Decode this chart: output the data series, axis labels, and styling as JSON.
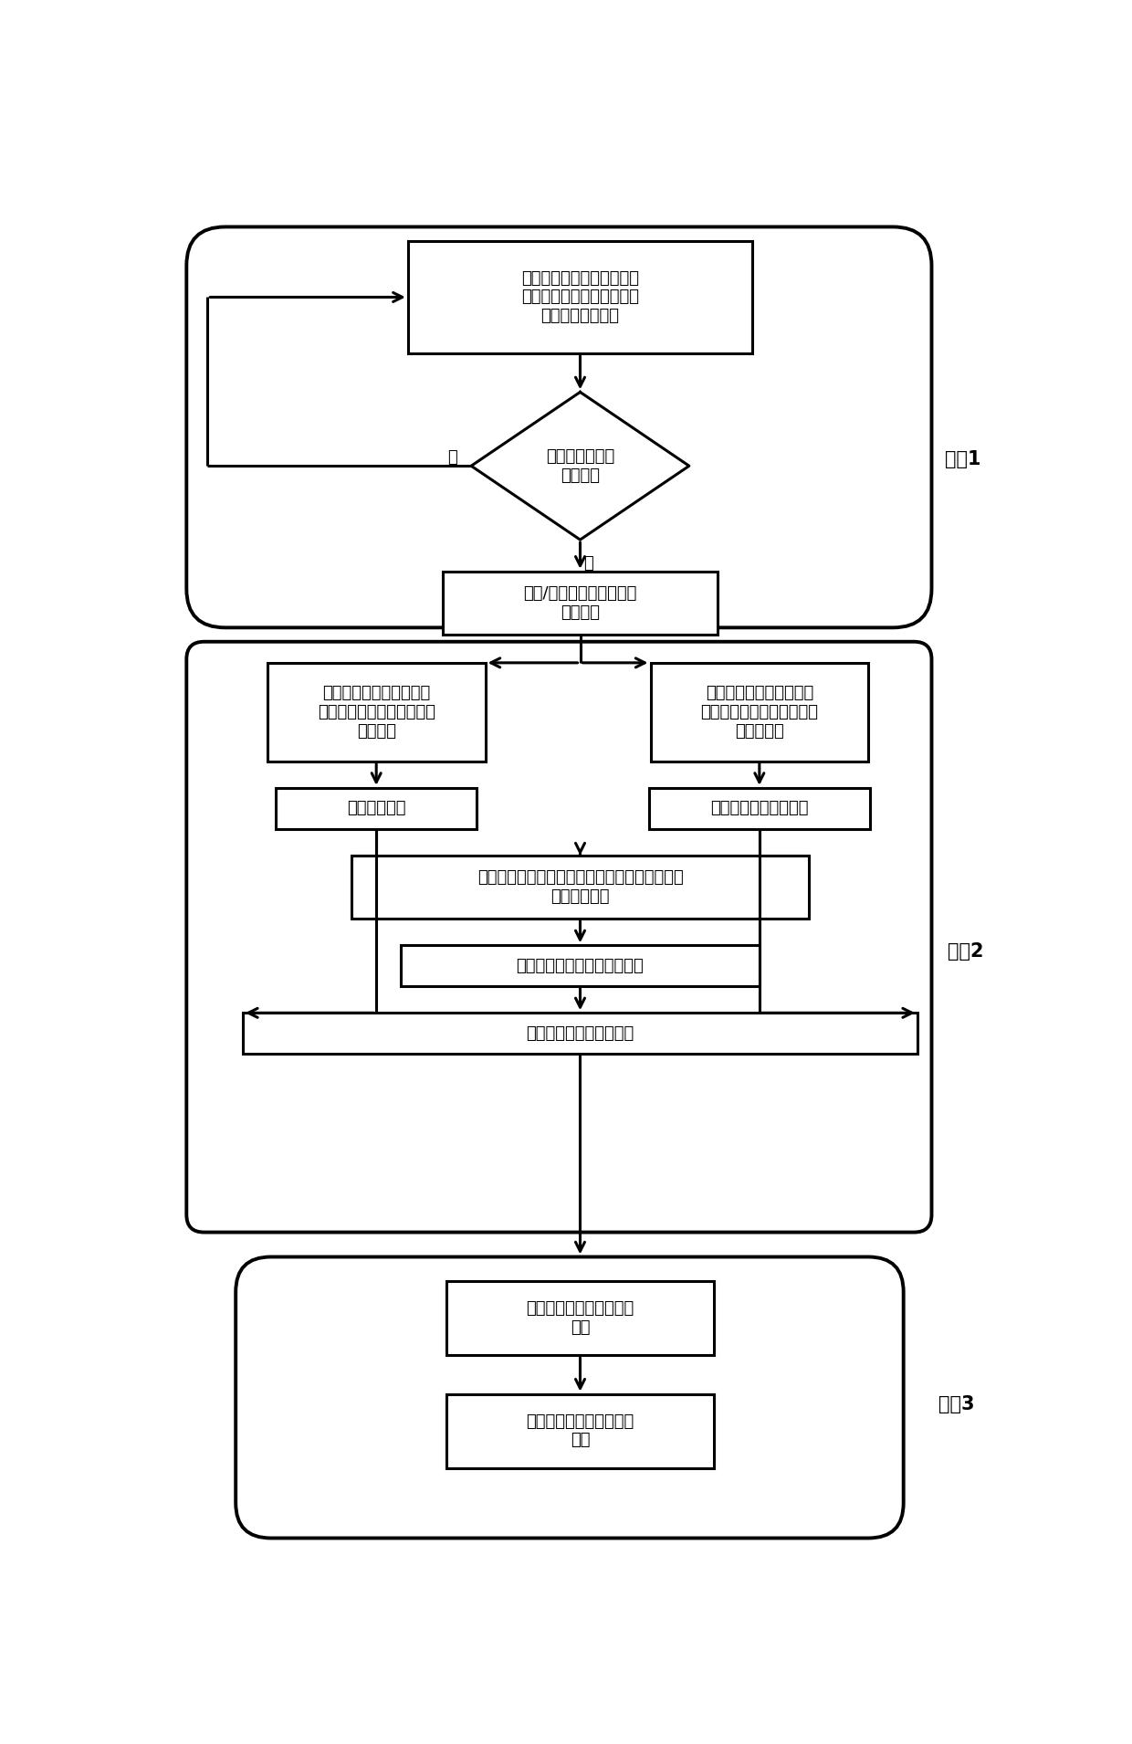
{
  "bg_color": "#ffffff",
  "line_color": "#000000",
  "text_color": "#000000",
  "font_size": 13,
  "step_font_size": 15,
  "step1_label": "步骤1",
  "step2_label": "步骤2",
  "step3_label": "步骤3",
  "box1_text": "电网调度平台将限电指令下\n发至风电场、光伏发电场的\n有功功率控制系统",
  "diamond_text": "符合新能源优先\n消纳原则",
  "diamond_no": "否",
  "diamond_yes": "是",
  "box2_text": "弃风/弃光电量反馈给电网\n调度平台",
  "box3_text": "综合能源服务公司在多能\n流现货市场交易平台上组织\n电力交易",
  "box4_text": "综合能源服务公司在多能\n流现货市场交易平台上组织\n天然气交易",
  "box5_text": "确定边际电价",
  "box6_text": "确定天然气的边际价格",
  "box7_text": "综合能源服务公司在多能流现货市场交易平台上\n组织热力交易",
  "box8_text": "确定热力的成交量与成交价格",
  "box9_text": "形成多能流联合出清结果",
  "box10_text": "多能流联合出清结果安全\n校核",
  "box11_text": "多能流联合出清结果下发\n执行"
}
